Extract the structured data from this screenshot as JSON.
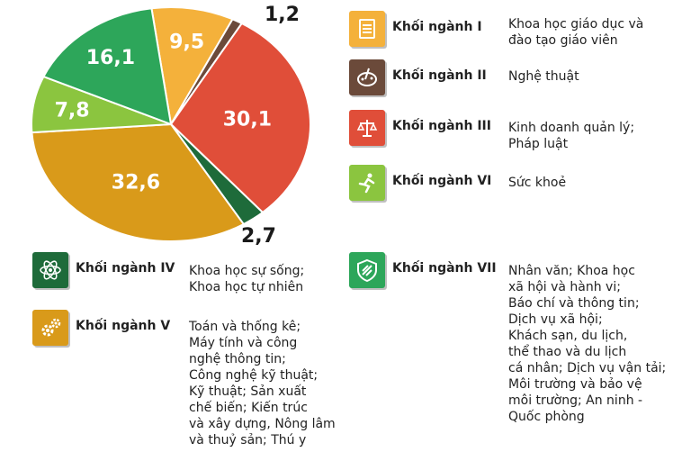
{
  "chart_data": {
    "type": "pie",
    "title": "",
    "slices": [
      {
        "value": 9.5,
        "label": "9,5",
        "color": "#F4B13B"
      },
      {
        "value": 1.2,
        "label": "1,2",
        "color": "#6B4A3A"
      },
      {
        "value": 30.1,
        "label": "30,1",
        "color": "#E04E39"
      },
      {
        "value": 2.7,
        "label": "2,7",
        "color": "#1E6B3A"
      },
      {
        "value": 32.6,
        "label": "32,6",
        "color": "#D99A1A"
      },
      {
        "value": 7.8,
        "label": "7,8",
        "color": "#8BC53F"
      },
      {
        "value": 16.1,
        "label": "16,1",
        "color": "#2DA65A"
      }
    ]
  },
  "legend": [
    {
      "name": "Khối ngành I",
      "desc": "Khoa học giáo dục và\nđào tạo giáo viên",
      "icon": "document-list-icon",
      "color": "#F4B13B"
    },
    {
      "name": "Khối ngành II",
      "desc": "Nghệ thuật",
      "icon": "art-palette-icon",
      "color": "#6B4A3A"
    },
    {
      "name": "Khối ngành III",
      "desc": "Kinh doanh quản lý;\nPháp luật",
      "icon": "scales-money-icon",
      "color": "#E04E39"
    },
    {
      "name": "Khối ngành VI",
      "desc": "Sức khoẻ",
      "icon": "runner-icon",
      "color": "#8BC53F"
    },
    {
      "name": "Khối ngành IV",
      "desc": "Khoa học sự sống;\nKhoa học tự nhiên",
      "icon": "atom-icon",
      "color": "#1E6B3A"
    },
    {
      "name": "Khối ngành V",
      "desc": "Toán và thống kê;\nMáy tính và công\nnghệ thông tin;\nCông nghệ kỹ thuật;\nKỹ thuật; Sản xuất\nchế biến; Kiến trúc\nvà xây dựng, Nông lâm\nvà thuỷ sản; Thú y",
      "icon": "gears-icon",
      "color": "#D99A1A"
    },
    {
      "name": "Khối ngành VII",
      "desc": "Nhân văn; Khoa học\nxã hội và hành vi;\nBáo chí và thông tin;\nDịch vụ xã hội;\nKhách sạn, du lịch,\nthể thao và du lịch\ncá nhân; Dịch vụ vận tải;\nMôi trường và bảo vệ\nmôi trường; An ninh -\nQuốc phòng",
      "icon": "shield-icon",
      "color": "#2DA65A"
    }
  ]
}
